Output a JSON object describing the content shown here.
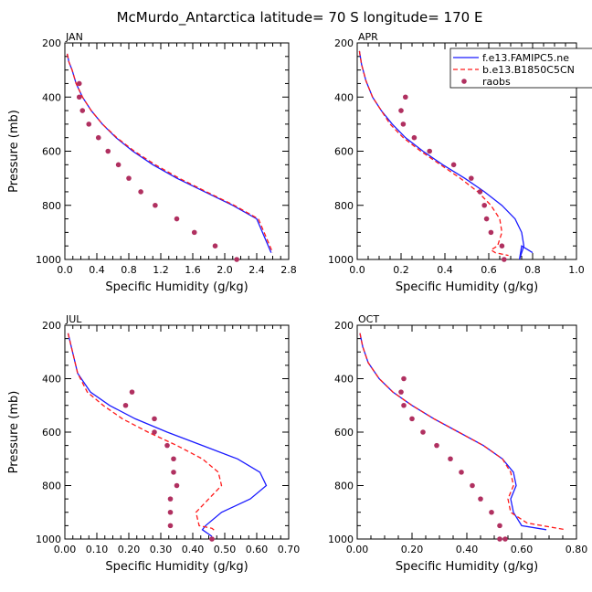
{
  "title": "McMurdo_Antarctica  latitude= 70 S longitude= 170 E",
  "colors": {
    "model1": "#1a1aff",
    "model2": "#ff1a1a",
    "obs": "#b03060",
    "axis": "#000000"
  },
  "chart_data": [
    {
      "type": "line",
      "panel": "JAN",
      "xlabel": "Specific Humidity (g/kg)",
      "ylabel": "Pressure (mb)",
      "xlim": [
        0,
        2.8
      ],
      "ylim": [
        1000,
        200
      ],
      "xticks": [
        "0.0",
        "0.4",
        "0.8",
        "1.2",
        "1.6",
        "2.0",
        "2.4",
        "2.8"
      ],
      "yticks": [
        "200",
        "400",
        "600",
        "800",
        "1000"
      ],
      "series": [
        {
          "name": "f.e13.FAMIPC5.ne",
          "style": "solid",
          "x": [
            0.03,
            0.05,
            0.09,
            0.14,
            0.22,
            0.33,
            0.47,
            0.64,
            0.85,
            1.1,
            1.4,
            1.75,
            2.1,
            2.4,
            2.58
          ],
          "y": [
            240,
            270,
            300,
            350,
            400,
            450,
            500,
            550,
            600,
            650,
            700,
            750,
            800,
            850,
            975
          ]
        },
        {
          "name": "b.e13.B1850C5CN",
          "style": "dashed",
          "x": [
            0.03,
            0.05,
            0.09,
            0.14,
            0.22,
            0.33,
            0.47,
            0.65,
            0.87,
            1.13,
            1.43,
            1.77,
            2.12,
            2.42,
            2.6
          ],
          "y": [
            240,
            270,
            300,
            350,
            400,
            450,
            500,
            550,
            600,
            650,
            700,
            750,
            800,
            850,
            975
          ]
        },
        {
          "name": "raobs",
          "style": "points",
          "x": [
            0.18,
            0.18,
            0.22,
            0.3,
            0.42,
            0.54,
            0.67,
            0.8,
            0.95,
            1.13,
            1.4,
            1.62,
            1.88,
            2.15
          ],
          "y": [
            350,
            400,
            450,
            500,
            550,
            600,
            650,
            700,
            750,
            800,
            850,
            900,
            950,
            1000
          ]
        }
      ]
    },
    {
      "type": "line",
      "panel": "APR",
      "xlabel": "Specific Humidity (g/kg)",
      "ylabel": "Pressure (mb)",
      "xlim": [
        0,
        1.0
      ],
      "ylim": [
        1000,
        200
      ],
      "xticks": [
        "0.0",
        "0.2",
        "0.4",
        "0.6",
        "0.8",
        "1.0"
      ],
      "yticks": [
        "200",
        "400",
        "600",
        "800",
        "1000"
      ],
      "series": [
        {
          "name": "f.e13.FAMIPC5.ne",
          "style": "solid",
          "x": [
            0.01,
            0.02,
            0.04,
            0.07,
            0.11,
            0.16,
            0.22,
            0.3,
            0.39,
            0.49,
            0.58,
            0.66,
            0.72,
            0.75,
            0.76,
            0.74,
            0.75,
            0.8
          ],
          "y": [
            230,
            280,
            340,
            400,
            450,
            500,
            550,
            600,
            650,
            700,
            750,
            800,
            850,
            900,
            950,
            1000,
            950,
            975
          ]
        },
        {
          "name": "b.e13.B1850C5CN",
          "style": "dashed",
          "x": [
            0.01,
            0.02,
            0.04,
            0.07,
            0.11,
            0.15,
            0.21,
            0.29,
            0.38,
            0.47,
            0.55,
            0.61,
            0.65,
            0.66,
            0.64,
            0.61,
            0.63,
            0.69
          ],
          "y": [
            230,
            280,
            340,
            400,
            450,
            500,
            550,
            600,
            650,
            700,
            750,
            800,
            850,
            900,
            950,
            965,
            975,
            985
          ]
        },
        {
          "name": "raobs",
          "style": "points",
          "x": [
            0.22,
            0.2,
            0.21,
            0.26,
            0.33,
            0.44,
            0.52,
            0.56,
            0.58,
            0.59,
            0.61,
            0.66,
            0.67
          ],
          "y": [
            400,
            450,
            500,
            550,
            600,
            650,
            700,
            750,
            800,
            850,
            900,
            950,
            1000
          ]
        }
      ]
    },
    {
      "type": "line",
      "panel": "JUL",
      "xlabel": "Specific Humidity (g/kg)",
      "ylabel": "Pressure (mb)",
      "xlim": [
        0,
        0.7
      ],
      "ylim": [
        1000,
        200
      ],
      "xticks": [
        "0.00",
        "0.10",
        "0.20",
        "0.30",
        "0.40",
        "0.50",
        "0.60",
        "0.70"
      ],
      "yticks": [
        "200",
        "400",
        "600",
        "800",
        "1000"
      ],
      "series": [
        {
          "name": "f.e13.FAMIPC5.ne",
          "style": "solid",
          "x": [
            0.01,
            0.02,
            0.04,
            0.08,
            0.14,
            0.22,
            0.32,
            0.43,
            0.54,
            0.61,
            0.63,
            0.58,
            0.49,
            0.44,
            0.43,
            0.46
          ],
          "y": [
            230,
            280,
            380,
            450,
            500,
            550,
            600,
            650,
            700,
            750,
            800,
            850,
            900,
            950,
            965,
            990
          ]
        },
        {
          "name": "b.e13.B1850C5CN",
          "style": "dashed",
          "x": [
            0.01,
            0.02,
            0.04,
            0.07,
            0.12,
            0.18,
            0.26,
            0.35,
            0.43,
            0.48,
            0.49,
            0.45,
            0.41,
            0.42,
            0.46,
            0.47
          ],
          "y": [
            230,
            280,
            380,
            450,
            500,
            550,
            600,
            650,
            700,
            750,
            800,
            850,
            900,
            950,
            960,
            970
          ]
        },
        {
          "name": "raobs",
          "style": "points",
          "x": [
            0.21,
            0.19,
            0.28,
            0.28,
            0.32,
            0.34,
            0.34,
            0.35,
            0.33,
            0.33,
            0.33,
            0.46
          ],
          "y": [
            450,
            500,
            550,
            600,
            650,
            700,
            750,
            800,
            850,
            900,
            950,
            1000
          ]
        }
      ]
    },
    {
      "type": "line",
      "panel": "OCT",
      "xlabel": "Specific Humidity (g/kg)",
      "ylabel": "Pressure (mb)",
      "xlim": [
        0,
        0.8
      ],
      "ylim": [
        1000,
        200
      ],
      "xticks": [
        "0.00",
        "0.20",
        "0.40",
        "0.60",
        "0.80"
      ],
      "yticks": [
        "200",
        "400",
        "600",
        "800",
        "1000"
      ],
      "series": [
        {
          "name": "f.e13.FAMIPC5.ne",
          "style": "solid",
          "x": [
            0.01,
            0.02,
            0.04,
            0.08,
            0.13,
            0.2,
            0.28,
            0.37,
            0.46,
            0.53,
            0.57,
            0.58,
            0.56,
            0.57,
            0.6,
            0.69
          ],
          "y": [
            230,
            280,
            340,
            400,
            450,
            500,
            550,
            600,
            650,
            700,
            750,
            800,
            850,
            900,
            950,
            965
          ]
        },
        {
          "name": "b.e13.B1850C5CN",
          "style": "dashed",
          "x": [
            0.01,
            0.02,
            0.04,
            0.08,
            0.13,
            0.2,
            0.28,
            0.37,
            0.46,
            0.53,
            0.56,
            0.57,
            0.55,
            0.56,
            0.62,
            0.76
          ],
          "y": [
            230,
            280,
            340,
            400,
            450,
            500,
            550,
            600,
            650,
            700,
            750,
            800,
            850,
            900,
            940,
            965
          ]
        },
        {
          "name": "raobs",
          "style": "points",
          "x": [
            0.17,
            0.16,
            0.17,
            0.2,
            0.24,
            0.29,
            0.34,
            0.38,
            0.42,
            0.45,
            0.49,
            0.52,
            0.54,
            0.52
          ],
          "y": [
            400,
            450,
            500,
            550,
            600,
            650,
            700,
            750,
            800,
            850,
            900,
            950,
            1000,
            1000
          ]
        }
      ]
    }
  ]
}
